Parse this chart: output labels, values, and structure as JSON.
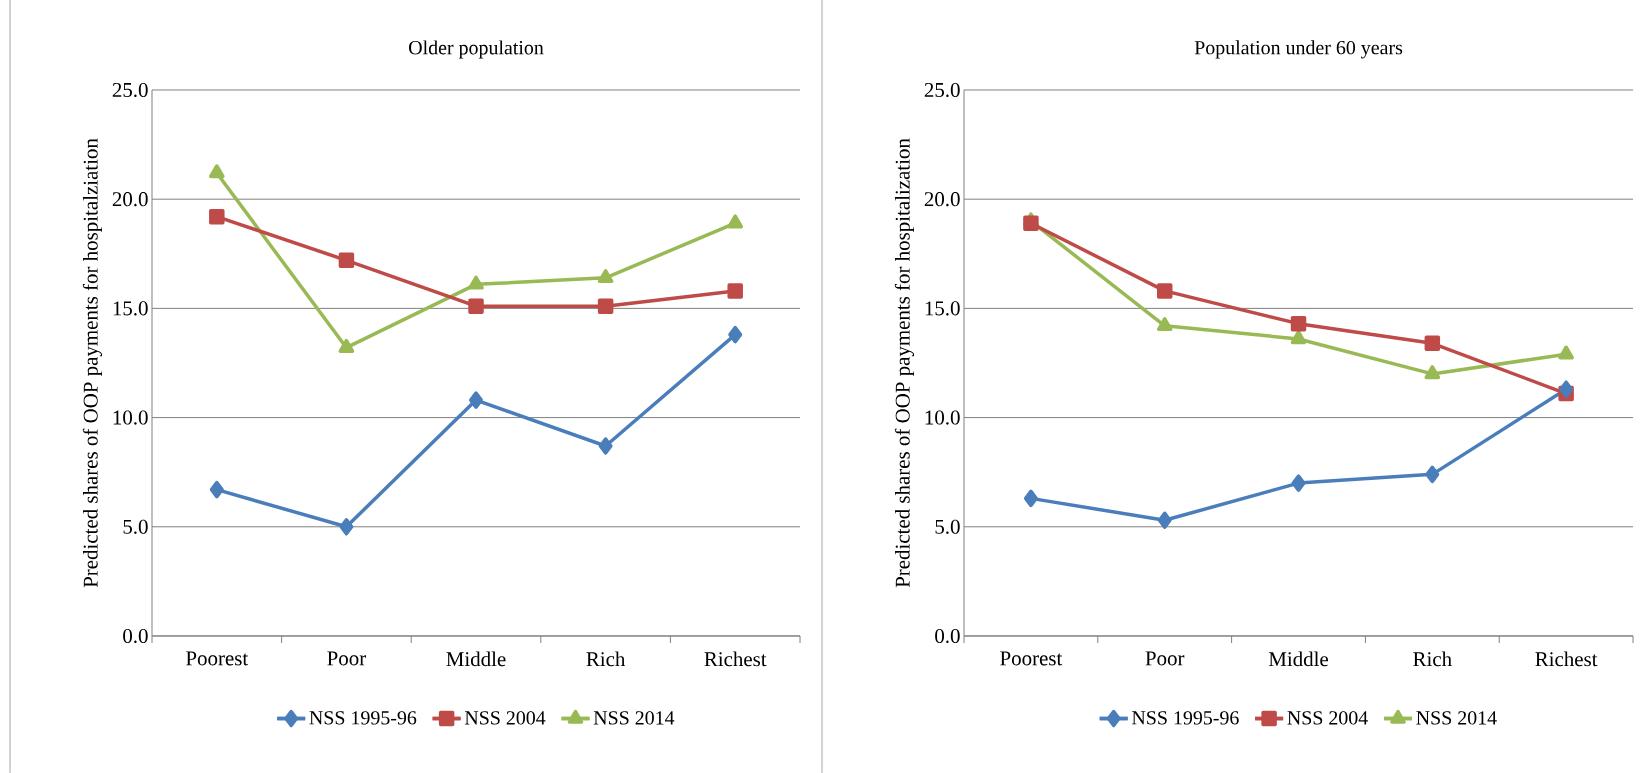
{
  "chart_data": [
    {
      "type": "line",
      "title": "Older population",
      "ylabel": "Predicted shares of OOP payments  for hospitalziation",
      "categories": [
        "Poorest",
        "Poor",
        "Middle",
        "Rich",
        "Richest"
      ],
      "series": [
        {
          "name": "NSS 1995-96",
          "color": "#4a7ebb",
          "marker": "diamond",
          "values": [
            6.7,
            5.0,
            10.8,
            8.7,
            13.8
          ]
        },
        {
          "name": "NSS 2004",
          "color": "#be4b48",
          "marker": "square",
          "values": [
            19.2,
            17.2,
            15.1,
            15.1,
            15.8
          ]
        },
        {
          "name": "NSS 2014",
          "color": "#98b954",
          "marker": "triangle",
          "values": [
            21.2,
            13.2,
            16.1,
            16.4,
            18.9
          ]
        }
      ],
      "ylim": [
        0,
        25
      ],
      "yticks": [
        {
          "value": 0,
          "label": "0.0"
        },
        {
          "value": 5,
          "label": "5.0"
        },
        {
          "value": 10,
          "label": "10.0"
        },
        {
          "value": 15,
          "label": "15.0"
        },
        {
          "value": 20,
          "label": "20.0"
        },
        {
          "value": 25,
          "label": "25.0"
        }
      ],
      "grid": "y",
      "legend": "bottom",
      "line_style": "solid"
    },
    {
      "type": "line",
      "title": "Population under 60 years",
      "ylabel": "Predicted shares of OOP payments  for hospitalization",
      "categories": [
        "Poorest",
        "Poor",
        "Middle",
        "Rich",
        "Richest"
      ],
      "series": [
        {
          "name": "NSS 1995-96",
          "color": "#4a7ebb",
          "marker": "diamond",
          "values": [
            6.3,
            5.3,
            7.0,
            7.4,
            11.3
          ]
        },
        {
          "name": "NSS 2004",
          "color": "#be4b48",
          "marker": "square",
          "values": [
            18.9,
            15.8,
            14.3,
            13.4,
            11.1
          ]
        },
        {
          "name": "NSS 2014",
          "color": "#98b954",
          "marker": "triangle",
          "values": [
            19.0,
            14.2,
            13.6,
            12.0,
            12.9
          ]
        }
      ],
      "ylim": [
        0,
        25
      ],
      "yticks": [
        {
          "value": 0,
          "label": "0.0"
        },
        {
          "value": 5,
          "label": "5.0"
        },
        {
          "value": 10,
          "label": "10.0"
        },
        {
          "value": 15,
          "label": "15.0"
        },
        {
          "value": 20,
          "label": "20.0"
        },
        {
          "value": 25,
          "label": "25.0"
        }
      ],
      "grid": "y",
      "legend": "bottom",
      "line_style": "solid"
    }
  ]
}
